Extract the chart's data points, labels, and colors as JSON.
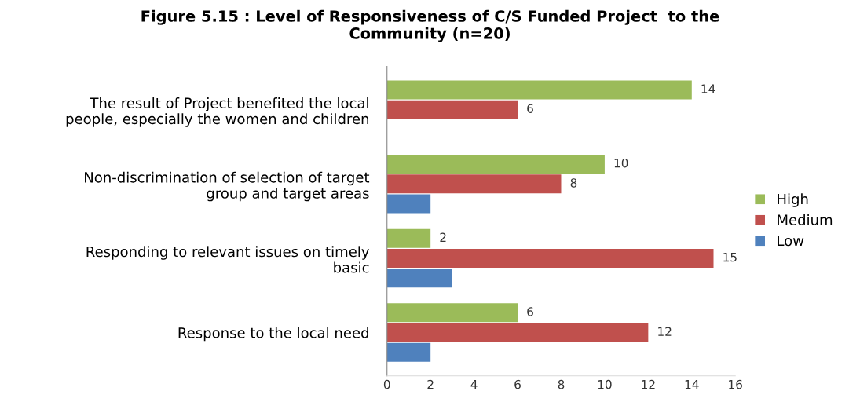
{
  "chart_data": {
    "type": "bar",
    "orientation": "horizontal",
    "title": "Figure 5.15 : Level of Responsiveness of C/S Funded Project  to the\nCommunity (n=20)",
    "categories": [
      "The result of Project benefited the local\npeople, especially the women and children",
      "Non-discrimination of selection of target\ngroup and target areas",
      "Responding to relevant issues on timely\nbasic",
      "Response to the local need"
    ],
    "series": [
      {
        "name": "High",
        "color": "#9bbb59",
        "values": [
          14,
          10,
          2,
          6
        ],
        "value_labels": [
          "14",
          "10",
          "2",
          "6"
        ]
      },
      {
        "name": "Medium",
        "color": "#c0504d",
        "values": [
          6,
          8,
          15,
          12
        ],
        "value_labels": [
          "6",
          "8",
          "15",
          "12"
        ]
      },
      {
        "name": "Low",
        "color": "#4f81bd",
        "values": [
          0,
          2,
          3,
          2
        ],
        "value_labels": [
          null,
          null,
          null,
          null
        ]
      }
    ],
    "xlim": [
      0,
      16
    ],
    "xticks": [
      0,
      2,
      4,
      6,
      8,
      10,
      12,
      14,
      16
    ],
    "grid": false,
    "legend": "right"
  }
}
